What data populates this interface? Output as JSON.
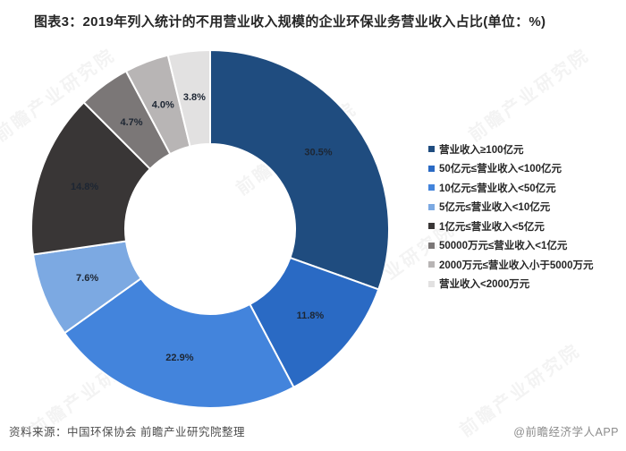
{
  "title": "图表3：2019年列入统计的不用营业收入规模的企业环保业务营业收入占比(单位：%)",
  "watermark": "前瞻产业研究院",
  "footer": {
    "source": "资料来源：中国环保协会 前瞻产业研究院整理",
    "brand": "@前瞻经济学人APP"
  },
  "chart_data": {
    "type": "pie",
    "donut": true,
    "donut_hole_ratio": 0.475,
    "start_angle_deg": 0,
    "direction": "clockwise",
    "legend_position": "right",
    "title": "2019年列入统计的不用营业收入规模的企业环保业务营业收入占比",
    "unit": "%",
    "categories": [
      "营业收入≥100亿元",
      "50亿元≤营业收入<100亿元",
      "10亿元≤营业收入<50亿元",
      "5亿元≤营业收入<10亿元",
      "1亿元≤营业收入<5亿元",
      "50000万元≤营业收入<1亿元",
      "2000万元≤营业收入小于5000万元",
      "营业收入<2000万元"
    ],
    "values": [
      30.5,
      11.8,
      22.9,
      7.6,
      14.8,
      4.7,
      4.0,
      3.8
    ],
    "labels": [
      "30.5%",
      "11.8%",
      "22.9%",
      "7.6%",
      "14.8%",
      "4.7%",
      "4.0%",
      "3.8%"
    ],
    "colors": [
      "#1F4C7F",
      "#2A6AC4",
      "#4384DC",
      "#7CA9E2",
      "#393636",
      "#7B7777",
      "#B8B5B5",
      "#E2E1E1"
    ],
    "slice_border_color": "#FFFFFF",
    "label_color": "#1D2633"
  }
}
